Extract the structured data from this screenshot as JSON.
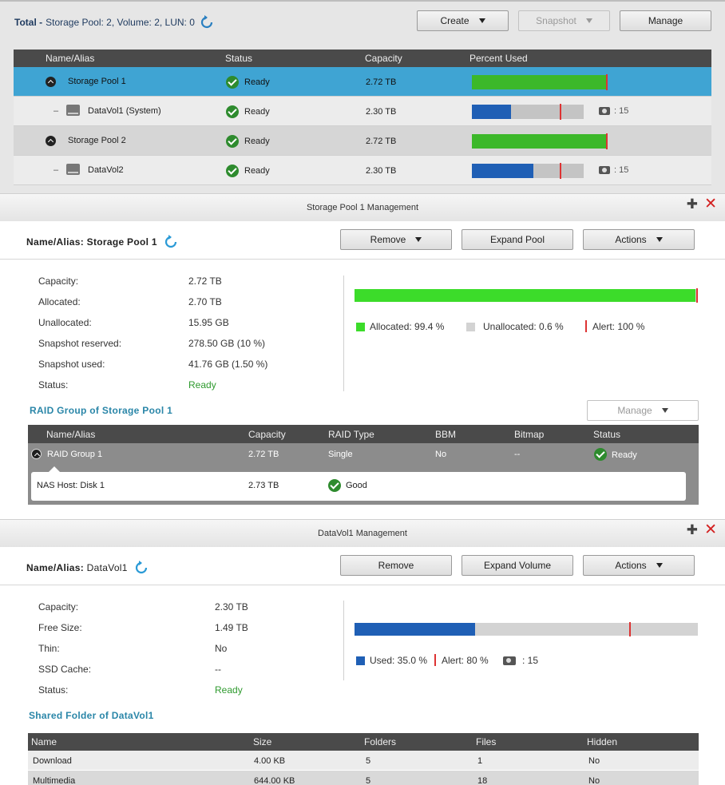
{
  "overview": {
    "total_label": "Total -",
    "total_text": "Storage Pool: 2, Volume: 2, LUN: 0",
    "buttons": {
      "create": "Create",
      "snapshot": "Snapshot",
      "manage": "Manage"
    },
    "columns": {
      "name": "Name/Alias",
      "status": "Status",
      "capacity": "Capacity",
      "percent": "Percent Used"
    },
    "rows": [
      {
        "name": "Storage Pool 1",
        "status": "Ready",
        "capacity": "2.72 TB",
        "used": 0.994,
        "alert": 1.0,
        "color": "#3cb82a",
        "snap": ""
      },
      {
        "name": "DataVol1 (System)",
        "status": "Ready",
        "capacity": "2.30 TB",
        "used": 0.35,
        "alert": 0.8,
        "color": "#1f5fb5",
        "snap": ": 15"
      },
      {
        "name": "Storage Pool 2",
        "status": "Ready",
        "capacity": "2.72 TB",
        "used": 0.994,
        "alert": 1.0,
        "color": "#3cb82a",
        "snap": ""
      },
      {
        "name": "DataVol2",
        "status": "Ready",
        "capacity": "2.30 TB",
        "used": 0.55,
        "alert": 0.8,
        "color": "#1f5fb5",
        "snap": ": 15"
      }
    ]
  },
  "pool_panel": {
    "title": "Storage Pool 1 Management",
    "name_label": "Name/Alias:",
    "name_value": "Storage Pool 1",
    "buttons": {
      "remove": "Remove",
      "expand": "Expand Pool",
      "actions": "Actions"
    },
    "fields": [
      {
        "label": "Capacity:",
        "value": "2.72 TB"
      },
      {
        "label": "Allocated:",
        "value": "2.70 TB"
      },
      {
        "label": "Unallocated:",
        "value": "15.95 GB"
      },
      {
        "label": "Snapshot reserved:",
        "value": "278.50 GB (10 %)"
      },
      {
        "label": "Snapshot used:",
        "value": "41.76 GB (1.50 %)"
      },
      {
        "label": "Status:",
        "value": "Ready"
      }
    ],
    "allocated_fraction": 0.994,
    "alert_fraction": 1.0,
    "legend": {
      "allocated": "Allocated: 99.4 %",
      "unallocated": "Unallocated: 0.6 %",
      "alert": "Alert: 100 %"
    },
    "raid_section_title": "RAID Group of Storage Pool 1",
    "raid_manage": "Manage",
    "raid_columns": {
      "name": "Name/Alias",
      "capacity": "Capacity",
      "type": "RAID Type",
      "bbm": "BBM",
      "bitmap": "Bitmap",
      "status": "Status"
    },
    "raid_group": {
      "name": "RAID Group 1",
      "capacity": "2.72 TB",
      "type": "Single",
      "bbm": "No",
      "bitmap": "--",
      "status": "Ready"
    },
    "raid_disk": {
      "name": "NAS Host: Disk 1",
      "capacity": "2.73 TB",
      "status": "Good"
    }
  },
  "vol_panel": {
    "title": "DataVol1 Management",
    "name_label": "Name/Alias:",
    "name_value": "DataVol1",
    "buttons": {
      "remove": "Remove",
      "expand": "Expand Volume",
      "actions": "Actions"
    },
    "fields": [
      {
        "label": "Capacity:",
        "value": "2.30 TB"
      },
      {
        "label": "Free Size:",
        "value": "1.49 TB"
      },
      {
        "label": "Thin:",
        "value": "No"
      },
      {
        "label": "SSD Cache:",
        "value": "--"
      },
      {
        "label": "Status:",
        "value": "Ready"
      }
    ],
    "used_fraction": 0.35,
    "alert_fraction": 0.8,
    "legend": {
      "used": "Used: 35.0 %",
      "alert": "Alert: 80 %",
      "snap": ": 15"
    },
    "shared_section_title": "Shared Folder of DataVol1",
    "shared_columns": {
      "name": "Name",
      "size": "Size",
      "folders": "Folders",
      "files": "Files",
      "hidden": "Hidden"
    },
    "shared_rows": [
      {
        "name": "Download",
        "size": "4.00 KB",
        "folders": "5",
        "files": "1",
        "hidden": "No"
      },
      {
        "name": "Multimedia",
        "size": "644.00 KB",
        "folders": "5",
        "files": "18",
        "hidden": "No"
      }
    ]
  },
  "colors": {
    "accent": "#3fa4d3",
    "allocated": "#3cb82a",
    "used": "#1f5fb5",
    "alert": "#dd3333",
    "section": "#2a86a8",
    "ready": "#2e9a2e"
  }
}
